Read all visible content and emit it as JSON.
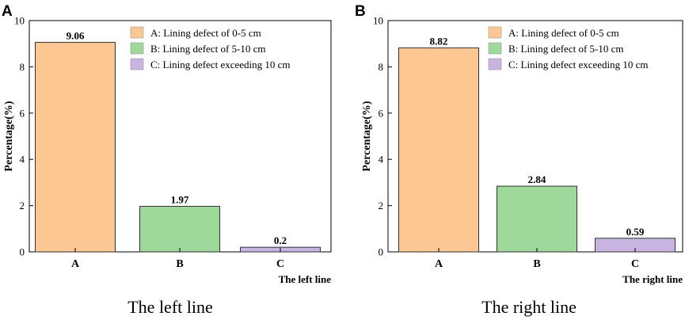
{
  "colors": {
    "A": "#fdc793",
    "B": "#9ed89b",
    "C": "#c9b3e0",
    "axis": "#000000"
  },
  "chart_data": [
    {
      "type": "bar",
      "panel": "A",
      "categories": [
        "A",
        "B",
        "C"
      ],
      "values": [
        9.06,
        1.97,
        0.2
      ],
      "value_labels": [
        "9.06",
        "1.97",
        "0.2"
      ],
      "ylabel": "Percentage(%)",
      "xlabel": "The left line",
      "caption": "The left line",
      "ylim": [
        0,
        10
      ],
      "yticks": [
        0,
        2,
        4,
        6,
        8,
        10
      ],
      "legend": [
        "A: Lining defect of 0-5 cm",
        "B: Lining defect of 5-10 cm",
        "C: Lining defect exceeding 10 cm"
      ],
      "legend_position": "top-right"
    },
    {
      "type": "bar",
      "panel": "B",
      "categories": [
        "A",
        "B",
        "C"
      ],
      "values": [
        8.82,
        2.84,
        0.59
      ],
      "value_labels": [
        "8.82",
        "2.84",
        "0.59"
      ],
      "ylabel": "Percentage(%)",
      "xlabel": "The right line",
      "caption": "The right line",
      "ylim": [
        0,
        10
      ],
      "yticks": [
        0,
        2,
        4,
        6,
        8,
        10
      ],
      "legend": [
        "A: Lining defect of 0-5 cm",
        "B: Lining defect of 5-10 cm",
        "C: Lining defect exceeding 10 cm"
      ],
      "legend_position": "top-right"
    }
  ]
}
